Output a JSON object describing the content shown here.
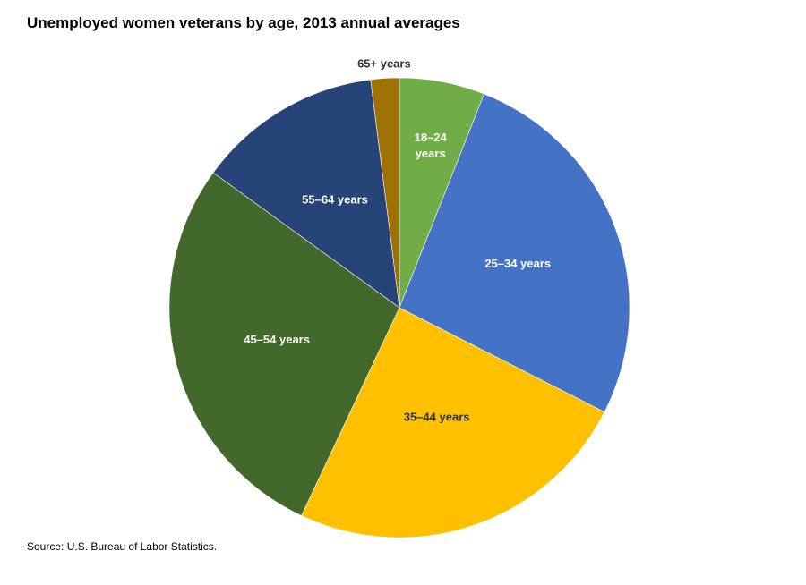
{
  "chart_data": {
    "type": "pie",
    "title": "Unemployed women veterans by age, 2013 annual averages",
    "categories": [
      "18–24 years",
      "25–34 years",
      "35–44 years",
      "45–54 years",
      "55–64 years",
      "65+ years"
    ],
    "values": [
      6.0,
      26.5,
      24.5,
      28.0,
      13.0,
      2.0
    ],
    "colors": [
      "#70ad47",
      "#4472c4",
      "#ffc000",
      "#43682b",
      "#264478",
      "#9e7103"
    ],
    "label_colors": [
      "#ffffff",
      "#ffffff",
      "#333333",
      "#ffffff",
      "#ffffff",
      "#333333"
    ],
    "start_angle_deg": 0,
    "direction": "clockwise"
  },
  "source": "Source: U.S. Bureau of Labor Statistics."
}
